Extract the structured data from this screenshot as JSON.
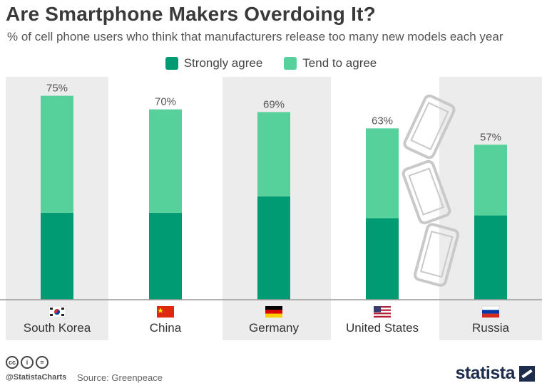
{
  "title": "Are Smartphone Makers Overdoing It?",
  "subtitle": "% of cell phone users who think that manufacturers release too many new models each year",
  "source": "Source: Greenpeace",
  "handle": "@StatistaCharts",
  "brand": "statista",
  "license_icons": [
    "cc-icon",
    "attribution-icon",
    "no-derivatives-icon"
  ],
  "colors": {
    "strongly": "#009b72",
    "tend": "#57d19c",
    "band": "#ececec"
  },
  "chart_data": {
    "type": "bar",
    "stacked": true,
    "categories": [
      "South Korea",
      "China",
      "Germany",
      "United States",
      "Russia"
    ],
    "series": [
      {
        "name": "Strongly agree",
        "values": [
          32,
          32,
          38,
          30,
          31
        ]
      },
      {
        "name": "Tend to agree",
        "values": [
          43,
          38,
          31,
          33,
          26
        ]
      }
    ],
    "totals": [
      75,
      70,
      69,
      63,
      57
    ],
    "total_labels": [
      "75%",
      "70%",
      "69%",
      "63%",
      "57%"
    ],
    "ylim": [
      0,
      80
    ],
    "flags": [
      "flag-south-korea",
      "flag-china",
      "flag-germany",
      "flag-united-states",
      "flag-russia"
    ],
    "legend_position": "top"
  }
}
